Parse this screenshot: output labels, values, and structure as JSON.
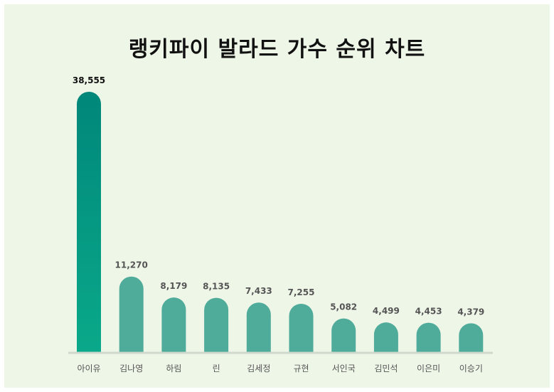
{
  "chart_data": {
    "type": "bar",
    "title": "랭키파이 발라드 가수 순위 차트",
    "categories": [
      "아이유",
      "김나영",
      "하림",
      "린",
      "김세정",
      "규현",
      "서인국",
      "김민석",
      "이은미",
      "이승기"
    ],
    "values": [
      38555,
      11270,
      8179,
      8135,
      7433,
      7255,
      5082,
      4499,
      4453,
      4379
    ],
    "value_labels": [
      "38,555",
      "11,270",
      "8,179",
      "8,135",
      "7,433",
      "7,255",
      "5,082",
      "4,499",
      "4,453",
      "4,379"
    ],
    "xlabel": "",
    "ylabel": "",
    "grid": false,
    "colors": {
      "top_bar_start": "#0aa98a",
      "top_bar_end": "#00877a",
      "bar": "#4fab9a",
      "baseline": "#cfd8cc",
      "background": "#eef6e8"
    }
  }
}
